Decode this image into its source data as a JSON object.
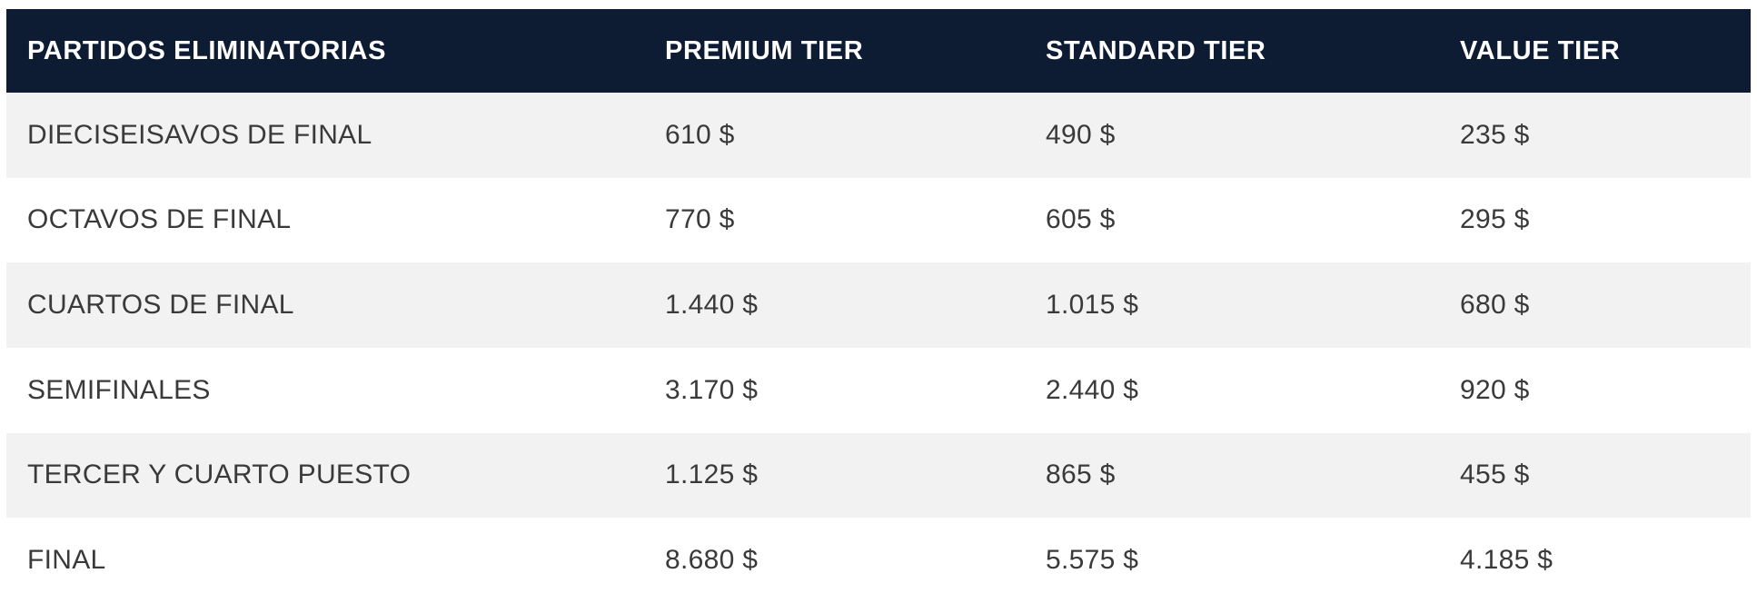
{
  "colors": {
    "header_background": "#0e1c33",
    "header_text": "#ffffff",
    "stripe_row_background": "#f2f2f2",
    "plain_row_background": "#ffffff",
    "body_text": "#3a3a3a"
  },
  "table": {
    "columns": [
      "PARTIDOS ELIMINATORIAS",
      "PREMIUM TIER",
      "STANDARD TIER",
      "VALUE TIER"
    ],
    "rows": [
      {
        "cells": [
          "DIECISEISAVOS DE FINAL",
          "610 $",
          "490 $",
          "235 $"
        ]
      },
      {
        "cells": [
          "OCTAVOS DE FINAL",
          "770 $",
          "605 $",
          "295 $"
        ]
      },
      {
        "cells": [
          "CUARTOS DE FINAL",
          "1.440 $",
          "1.015 $",
          "680 $"
        ]
      },
      {
        "cells": [
          "SEMIFINALES",
          "3.170 $",
          "2.440 $",
          "920 $"
        ]
      },
      {
        "cells": [
          "TERCER Y CUARTO PUESTO",
          "1.125 $",
          "865 $",
          "455 $"
        ]
      },
      {
        "cells": [
          "FINAL",
          "8.680 $",
          "5.575 $",
          "4.185 $"
        ]
      }
    ]
  },
  "chart_data": {
    "type": "table",
    "title": "PARTIDOS ELIMINATORIAS",
    "categories": [
      "DIECISEISAVOS DE FINAL",
      "OCTAVOS DE FINAL",
      "CUARTOS DE FINAL",
      "SEMIFINALES",
      "TERCER Y CUARTO PUESTO",
      "FINAL"
    ],
    "series": [
      {
        "name": "PREMIUM TIER",
        "values": [
          610,
          770,
          1440,
          3170,
          1125,
          8680
        ]
      },
      {
        "name": "STANDARD TIER",
        "values": [
          490,
          605,
          1015,
          2440,
          865,
          5575
        ]
      },
      {
        "name": "VALUE TIER",
        "values": [
          235,
          295,
          680,
          920,
          455,
          4185
        ]
      }
    ],
    "unit": "$"
  }
}
